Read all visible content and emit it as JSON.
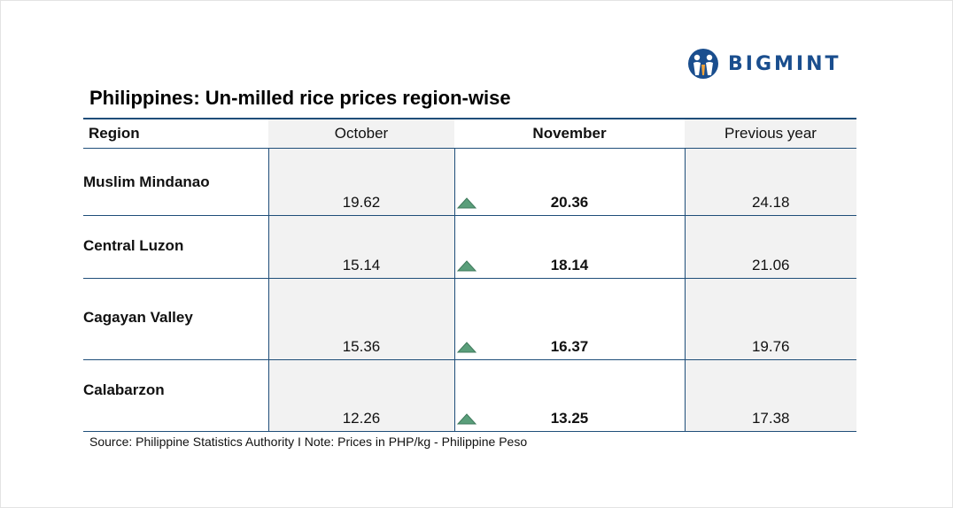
{
  "brand": {
    "name": "BIGMINT",
    "color": "#1a4e8e"
  },
  "title": "Philippines: Un-milled rice prices region-wise",
  "table": {
    "headers": [
      "Region",
      "October",
      "November",
      "Previous year"
    ],
    "rows": [
      {
        "region": "Muslim Mindanao",
        "october": "19.62",
        "november": "20.36",
        "previous_year": "24.18",
        "trend": "up-arrow-icon"
      },
      {
        "region": "Central Luzon",
        "october": "15.14",
        "november": "18.14",
        "previous_year": "21.06",
        "trend": "up-arrow-icon"
      },
      {
        "region": "Cagayan Valley",
        "october": "15.36",
        "november": "16.37",
        "previous_year": "19.76",
        "trend": "up-arrow-icon"
      },
      {
        "region": "Calabarzon",
        "october": "12.26",
        "november": "13.25",
        "previous_year": "17.38",
        "trend": "up-arrow-icon"
      }
    ]
  },
  "source": "Source: Philippine Statistics Authority I Note: Prices in PHP/kg - Philippine Peso",
  "colors": {
    "border": "#1f4e79",
    "shade": "#f2f2f2",
    "arrow": "#5a9e7a"
  }
}
